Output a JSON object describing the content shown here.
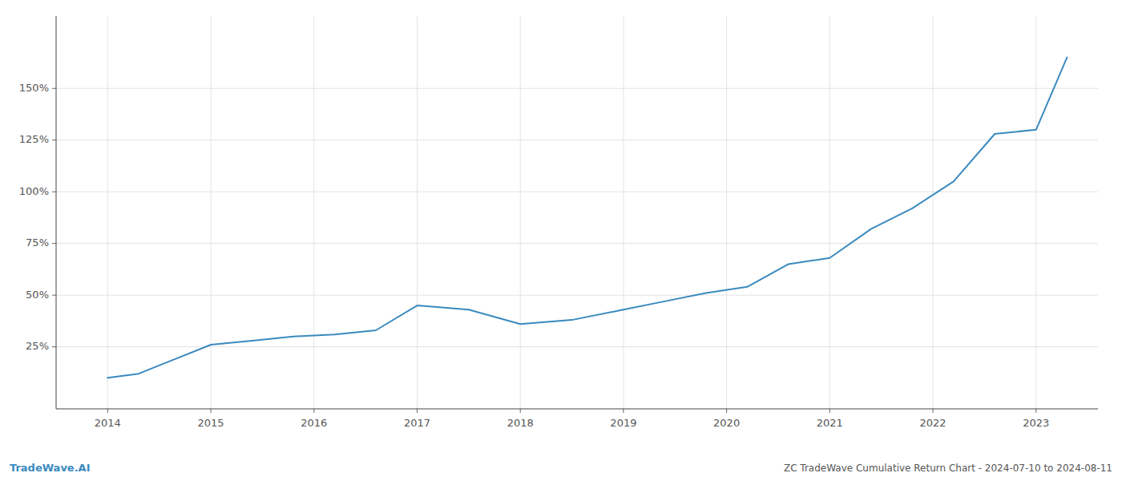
{
  "chart_data": {
    "type": "line",
    "title": "ZC TradeWave Cumulative Return Chart - 2024-07-10 to 2024-08-11",
    "annotations": [
      "TradeWave.AI"
    ],
    "color": "#3a8abf",
    "x": [
      2014.0,
      2014.3,
      2014.6,
      2015.0,
      2015.4,
      2015.8,
      2016.2,
      2016.6,
      2017.0,
      2017.5,
      2018.0,
      2018.5,
      2019.0,
      2019.4,
      2019.8,
      2020.2,
      2020.6,
      2021.0,
      2021.4,
      2021.8,
      2022.2,
      2022.6,
      2023.0,
      2023.3
    ],
    "values": [
      10,
      12,
      18,
      26,
      28,
      30,
      31,
      33,
      45,
      43,
      36,
      38,
      43,
      47,
      51,
      54,
      65,
      68,
      82,
      92,
      105,
      128,
      130,
      165
    ],
    "xlim": [
      2013.5,
      2023.6
    ],
    "xticks": [
      2014,
      2015,
      2016,
      2017,
      2018,
      2019,
      2020,
      2021,
      2022,
      2023
    ],
    "ylim": [
      -5,
      185
    ],
    "yticks": [
      {
        "value": 25,
        "label": "25%"
      },
      {
        "value": 50,
        "label": "50%"
      },
      {
        "value": 75,
        "label": "75%"
      },
      {
        "value": 100,
        "label": "100%"
      },
      {
        "value": 125,
        "label": "125%"
      },
      {
        "value": 150,
        "label": "150%"
      }
    ],
    "grid": true
  }
}
